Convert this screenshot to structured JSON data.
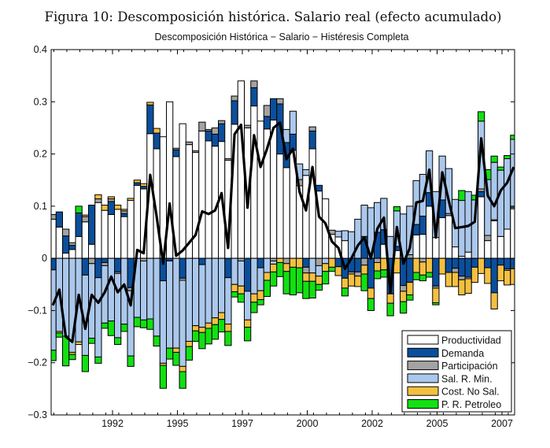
{
  "figure_caption": "Figura 10: Descomposición histórica. Salario real (efecto acumulado)",
  "chart_data": {
    "type": "bar",
    "subtype": "stacked bar with total line",
    "title": "Descomposición Histórica − Salario − Histéresis Completa",
    "xlabel": "",
    "ylabel": "",
    "ylim": [
      -0.3,
      0.4
    ],
    "y_ticks": [
      "0.4",
      "0.3",
      "0.2",
      "0.1",
      "0",
      "−0.1",
      "−0.2",
      "−0.3"
    ],
    "y_tick_values": [
      0.4,
      0.3,
      0.2,
      0.1,
      0,
      -0.1,
      -0.2,
      -0.3
    ],
    "x_ticks": [
      "1992",
      "1995",
      "1997",
      "2000",
      "2002",
      "2005",
      "2007"
    ],
    "legend_position": "bottom-right",
    "grid": false,
    "series": [
      {
        "name": "Productividad",
        "color": "#ffffff",
        "values": [
          0.075,
          0.06,
          0.01,
          0.017,
          0.042,
          0.07,
          0.027,
          0.107,
          0.092,
          0.084,
          0.094,
          0.08,
          0.111,
          0.14,
          0.133,
          0.239,
          0.21,
          0.233,
          0.3,
          0.195,
          0.258,
          0.218,
          0.203,
          0.244,
          0.225,
          0.215,
          0.224,
          0.188,
          0.257,
          0.34,
          0.25,
          0.292,
          0.263,
          0.248,
          0.265,
          0.2,
          0.174,
          0.207,
          0.139,
          0.159,
          0.21,
          0.129,
          0.114,
          0.046,
          0.041,
          0.034,
          0,
          0,
          0,
          0,
          0,
          0.027,
          0,
          0.015,
          0,
          0,
          0.045,
          0.046,
          0.1,
          0.04,
          0.078,
          0.082,
          0.022,
          0.004,
          0.012,
          0,
          0.118,
          0.034,
          0.072,
          0.042,
          0.056,
          0.095
        ]
      },
      {
        "name": "Demanda",
        "color": "#0b4f9c",
        "values": [
          -0.022,
          0.029,
          0.033,
          0.008,
          0.045,
          -0.032,
          0.075,
          -0.037,
          -0.008,
          0.025,
          -0.026,
          0.006,
          -0.056,
          0.005,
          0.005,
          0.055,
          0.03,
          -0.043,
          -0.005,
          0.013,
          -0.038,
          0,
          0,
          -0.012,
          0.019,
          0.023,
          0.034,
          -0.037,
          0.045,
          0,
          -0.063,
          0.035,
          -0.018,
          0.024,
          0.041,
          0.096,
          0.048,
          0.031,
          0,
          -0.017,
          0.034,
          0.011,
          0,
          0,
          -0.016,
          -0.038,
          -0.026,
          -0.026,
          0.042,
          -0.057,
          0.05,
          0.028,
          -0.068,
          0.008,
          -0.052,
          -0.046,
          0.02,
          0.035,
          0.026,
          -0.053,
          0.034,
          -0.027,
          -0.019,
          -0.034,
          -0.036,
          -0.017,
          0.01,
          -0.018,
          -0.066,
          -0.013,
          -0.02,
          -0.02
        ]
      },
      {
        "name": "Participación",
        "color": "#a3a3a3",
        "values": [
          0.009,
          0,
          0.013,
          0.005,
          0,
          0.01,
          -0.01,
          0.007,
          -0.006,
          0.005,
          -0.003,
          0.005,
          -0.006,
          0,
          -0.005,
          0,
          0,
          0,
          0,
          0.003,
          -0.004,
          0.005,
          0.003,
          0.017,
          0.003,
          0.012,
          0.006,
          0.003,
          0.009,
          -0.005,
          0.005,
          0.013,
          0,
          0.021,
          -0.005,
          0.01,
          -0.01,
          0,
          0.012,
          -0.011,
          0.008,
          -0.014,
          0,
          0.008,
          0,
          0,
          -0.004,
          -0.008,
          -0.013,
          0,
          -0.008,
          0,
          0,
          0,
          -0.011,
          0.007,
          0,
          -0.007,
          0,
          -0.004,
          0,
          0.004,
          -0.008,
          -0.007,
          -0.003,
          0,
          0.005,
          0.01,
          0.002,
          0,
          -0.003,
          0.003
        ]
      },
      {
        "name": "Sal. R. Min.",
        "color": "#abc8ec",
        "values": [
          -0.154,
          -0.14,
          -0.149,
          -0.18,
          -0.16,
          -0.154,
          -0.143,
          -0.152,
          -0.11,
          -0.12,
          -0.123,
          -0.126,
          -0.125,
          -0.113,
          -0.113,
          -0.116,
          -0.149,
          -0.158,
          -0.167,
          -0.172,
          -0.165,
          -0.159,
          -0.129,
          -0.12,
          -0.124,
          -0.114,
          -0.104,
          -0.089,
          -0.05,
          -0.048,
          -0.055,
          -0.068,
          -0.044,
          -0.027,
          -0.006,
          0,
          0.025,
          0.044,
          0.03,
          0.011,
          -0.028,
          -0.02,
          -0.01,
          0,
          0.011,
          0.019,
          0.051,
          0.075,
          0.06,
          0.097,
          0.057,
          0.06,
          0.042,
          0.068,
          0.085,
          0.093,
          0.084,
          0.08,
          0.08,
          0.088,
          0.084,
          0.086,
          0.091,
          0.107,
          0.116,
          0.112,
          0.13,
          0.107,
          0.11,
          0.127,
          0.135,
          0.13
        ]
      },
      {
        "name": "Cost. No Sal.",
        "color": "#f4c042",
        "values": [
          0,
          -0.003,
          0,
          -0.004,
          -0.005,
          0.003,
          0,
          0.008,
          0.01,
          0.004,
          0.008,
          0.003,
          0.004,
          0.005,
          0.005,
          0.005,
          0.009,
          -0.004,
          0,
          -0.008,
          -0.01,
          -0.01,
          -0.01,
          -0.01,
          -0.01,
          -0.013,
          -0.013,
          -0.014,
          -0.014,
          -0.015,
          -0.014,
          -0.016,
          -0.017,
          -0.015,
          -0.015,
          -0.008,
          -0.015,
          -0.017,
          -0.018,
          -0.016,
          -0.016,
          -0.016,
          -0.015,
          -0.017,
          -0.017,
          -0.019,
          -0.023,
          -0.02,
          -0.017,
          -0.02,
          -0.016,
          -0.022,
          -0.018,
          -0.028,
          -0.02,
          -0.024,
          -0.027,
          -0.025,
          -0.027,
          -0.028,
          -0.03,
          -0.027,
          -0.027,
          -0.029,
          -0.028,
          -0.029,
          -0.029,
          -0.03,
          -0.031,
          -0.03,
          -0.028,
          -0.03
        ]
      },
      {
        "name": "P. R. Petroleo",
        "color": "#12e012",
        "values": [
          -0.02,
          -0.008,
          -0.057,
          -0.01,
          0.013,
          -0.031,
          -0.01,
          -0.012,
          -0.01,
          -0.028,
          -0.013,
          -0.014,
          -0.02,
          -0.018,
          -0.015,
          -0.02,
          -0.019,
          -0.044,
          -0.021,
          -0.025,
          -0.032,
          -0.026,
          -0.02,
          -0.031,
          -0.03,
          -0.028,
          -0.024,
          -0.027,
          -0.01,
          -0.016,
          -0.026,
          -0.02,
          -0.01,
          -0.031,
          -0.027,
          -0.027,
          -0.043,
          -0.053,
          -0.048,
          -0.033,
          -0.032,
          -0.011,
          -0.024,
          -0.008,
          0,
          -0.015,
          0,
          0,
          -0.032,
          -0.023,
          -0.015,
          -0.014,
          -0.024,
          0.008,
          -0.022,
          -0.01,
          -0.014,
          -0.011,
          -0.009,
          -0.004,
          0,
          0,
          0,
          0.019,
          0,
          0.009,
          0.018,
          0.019,
          0.012,
          0.006,
          0.006,
          0.008
        ]
      }
    ],
    "total_line": {
      "color": "#000000",
      "values": [
        -0.09,
        -0.06,
        -0.15,
        -0.16,
        -0.07,
        -0.135,
        -0.07,
        -0.085,
        -0.065,
        -0.035,
        -0.065,
        -0.05,
        -0.09,
        0.016,
        0.01,
        0.16,
        0.08,
        -0.01,
        0.105,
        0.005,
        0.015,
        0.03,
        0.045,
        0.09,
        0.085,
        0.092,
        0.125,
        0.02,
        0.238,
        0.256,
        0.097,
        0.236,
        0.175,
        0.21,
        0.25,
        0.26,
        0.19,
        0.21,
        0.128,
        0.092,
        0.175,
        0.08,
        0.067,
        0.032,
        0.02,
        -0.02,
        0,
        0.025,
        0.04,
        0,
        0.057,
        0.078,
        -0.065,
        0.06,
        -0.01,
        0.02,
        0.107,
        0.11,
        0.17,
        0.04,
        0.165,
        0.11,
        0.058,
        0.06,
        0.062,
        0.07,
        0.23,
        0.12,
        0.1,
        0.13,
        0.145,
        0.175
      ]
    }
  }
}
